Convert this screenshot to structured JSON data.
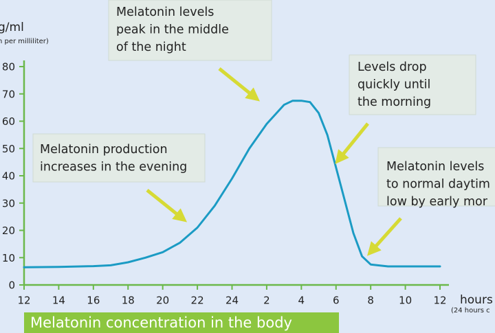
{
  "chart_data": {
    "type": "line",
    "title": "Melatonin concentration in the body",
    "y_label": "g/ml",
    "y_sublabel": "n per milliliter)",
    "x_label": "hours",
    "x_sublabel": "(24 hours c",
    "x": [
      12,
      14,
      16,
      17,
      18,
      19,
      20,
      21,
      22,
      23,
      24,
      25,
      26,
      27,
      27.5,
      28,
      28.5,
      29,
      29.5,
      30,
      30.5,
      31,
      31.5,
      32,
      33,
      34,
      36
    ],
    "series": [
      {
        "color": "#1b9bc4",
        "values": [
          6.5,
          6.6,
          6.9,
          7.2,
          8.3,
          10,
          12,
          15.5,
          21,
          29,
          39,
          50,
          59,
          66,
          67.5,
          67.5,
          67,
          63,
          55,
          43,
          31,
          19,
          10.5,
          7.5,
          6.8,
          6.8,
          6.8
        ]
      }
    ],
    "xlim": [
      12,
      36
    ],
    "xticks": [
      12,
      14,
      16,
      18,
      20,
      22,
      24,
      {
        "value": 26,
        "label": "2"
      },
      {
        "value": 28,
        "label": "4"
      },
      {
        "value": 30,
        "label": "6"
      },
      {
        "value": 32,
        "label": "8"
      },
      {
        "value": 34,
        "label": "10"
      },
      {
        "value": 36,
        "label": "12"
      }
    ],
    "ylim": [
      0,
      80
    ],
    "yticks": [
      0,
      10,
      20,
      30,
      40,
      50,
      60,
      70,
      80
    ],
    "axis_color": "#6bb84a",
    "annotations": [
      {
        "lines": [
          "Melatonin levels",
          "peak in the middle",
          "of the night"
        ]
      },
      {
        "lines": [
          "Levels drop",
          "quickly until",
          "the morning"
        ]
      },
      {
        "lines": [
          "Melatonin production",
          "increases in the evening"
        ]
      },
      {
        "lines": [
          "Melatonin levels",
          "to normal daytim",
          "low by early mor"
        ]
      }
    ]
  }
}
